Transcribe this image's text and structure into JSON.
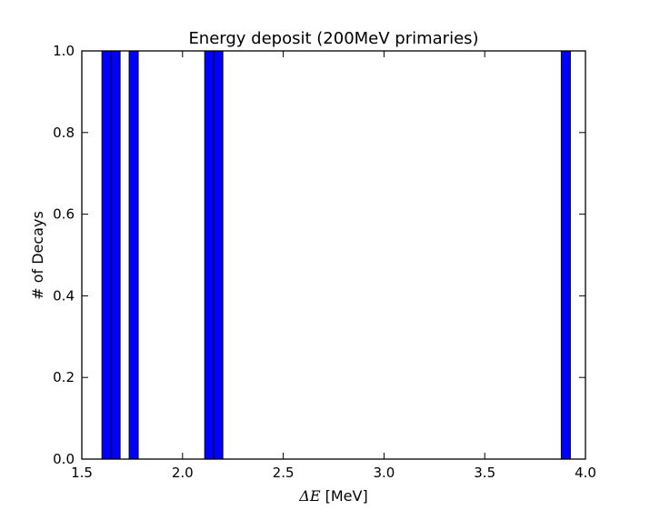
{
  "chart_data": {
    "type": "bar",
    "title": "Energy deposit (200MeV primaries)",
    "xlabel_math": "ΔE",
    "xlabel_unit": " [MeV]",
    "ylabel": "# of Decays",
    "xlim": [
      1.5,
      4.0
    ],
    "ylim": [
      0.0,
      1.0
    ],
    "xticks": [
      "1.5",
      "2.0",
      "2.5",
      "3.0",
      "3.5",
      "4.0"
    ],
    "yticks": [
      "0.0",
      "0.2",
      "0.4",
      "0.6",
      "0.8",
      "1.0"
    ],
    "grid": false,
    "bar_color": "#0000ff",
    "bars": [
      {
        "x0": 1.6,
        "x1": 1.645,
        "value": 1.0
      },
      {
        "x0": 1.645,
        "x1": 1.69,
        "value": 1.0
      },
      {
        "x0": 1.735,
        "x1": 1.78,
        "value": 1.0
      },
      {
        "x0": 2.11,
        "x1": 2.155,
        "value": 1.0
      },
      {
        "x0": 2.155,
        "x1": 2.2,
        "value": 1.0
      },
      {
        "x0": 3.88,
        "x1": 3.925,
        "value": 1.0
      }
    ]
  }
}
